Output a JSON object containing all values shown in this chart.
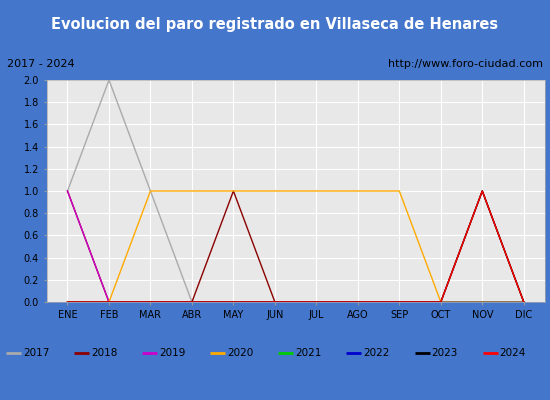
{
  "title": "Evolucion del paro registrado en Villaseca de Henares",
  "subtitle_left": "2017 - 2024",
  "subtitle_right": "http://www.foro-ciudad.com",
  "x_labels": [
    "ENE",
    "FEB",
    "MAR",
    "ABR",
    "MAY",
    "JUN",
    "JUL",
    "AGO",
    "SEP",
    "OCT",
    "NOV",
    "DIC"
  ],
  "ylim": [
    0.0,
    2.0
  ],
  "yticks": [
    0.0,
    0.2,
    0.4,
    0.6,
    0.8,
    1.0,
    1.2,
    1.4,
    1.6,
    1.8,
    2.0
  ],
  "series": {
    "2017": {
      "color": "#aaaaaa",
      "data": [
        1,
        2,
        1,
        0,
        0,
        0,
        0,
        0,
        0,
        0,
        0,
        0
      ]
    },
    "2018": {
      "color": "#8b0000",
      "data": [
        1,
        0,
        0,
        0,
        1,
        0,
        0,
        0,
        0,
        0,
        1,
        0
      ]
    },
    "2019": {
      "color": "#cc00cc",
      "data": [
        1,
        0,
        0,
        0,
        0,
        0,
        0,
        0,
        0,
        0,
        0,
        0
      ]
    },
    "2020": {
      "color": "#ffaa00",
      "data": [
        0,
        0,
        1,
        1,
        1,
        1,
        1,
        1,
        1,
        0,
        0,
        0
      ]
    },
    "2021": {
      "color": "#00cc00",
      "data": [
        0,
        0,
        0,
        0,
        0,
        0,
        0,
        0,
        0,
        0,
        0,
        0
      ]
    },
    "2022": {
      "color": "#0000cc",
      "data": [
        0,
        0,
        0,
        0,
        0,
        0,
        0,
        0,
        0,
        0,
        0,
        0
      ]
    },
    "2023": {
      "color": "#000000",
      "data": [
        0,
        0,
        0,
        0,
        0,
        0,
        0,
        0,
        0,
        0,
        1,
        0
      ]
    },
    "2024": {
      "color": "#ff0000",
      "data": [
        0,
        0,
        0,
        0,
        0,
        0,
        0,
        0,
        0,
        0,
        1,
        0
      ]
    }
  },
  "title_bg_color": "#5588dd",
  "title_text_color": "#ffffff",
  "subtitle_bg_color": "#f0f0f0",
  "plot_bg_color": "#e8e8e8",
  "grid_color": "#ffffff",
  "legend_bg_color": "#e0e0e0",
  "legend_years": [
    "2017",
    "2018",
    "2019",
    "2020",
    "2021",
    "2022",
    "2023",
    "2024"
  ],
  "outer_bg_color": "#4477cc"
}
